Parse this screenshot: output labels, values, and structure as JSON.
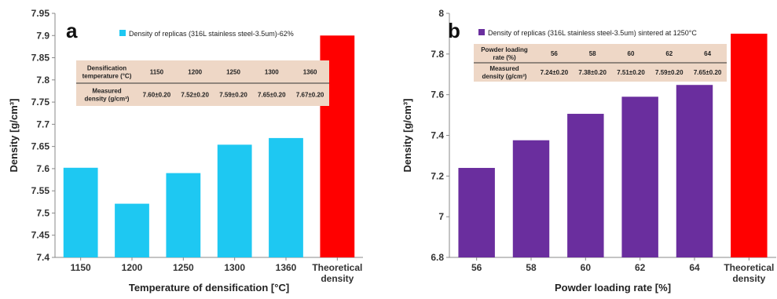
{
  "chart_data": [
    {
      "type": "bar",
      "panel_label": "a",
      "categories": [
        "1150",
        "1200",
        "1250",
        "1300",
        "1360",
        "Theoretical\ndensity"
      ],
      "values": [
        7.602,
        7.521,
        7.59,
        7.654,
        7.669,
        7.9
      ],
      "bar_colors": [
        "#1ec8f2",
        "#1ec8f2",
        "#1ec8f2",
        "#1ec8f2",
        "#1ec8f2",
        "#ff0000"
      ],
      "xlabel": "Temperature of densification [°C]",
      "ylabel": "Density [g/cm³]",
      "ylim": [
        7.4,
        7.95
      ],
      "yticks": [
        7.4,
        7.45,
        7.5,
        7.55,
        7.6,
        7.65,
        7.7,
        7.75,
        7.8,
        7.85,
        7.9,
        7.95
      ],
      "ytick_labels": [
        "7.4",
        "7.45",
        "7.5",
        "7.55",
        "7.6",
        "7.65",
        "7.7",
        "7.75",
        "7.8",
        "7.85",
        "7.9",
        "7.95"
      ],
      "legend": {
        "label": "Density of replicas (316L stainless steel-3.5um)-62%",
        "color": "#1ec8f2",
        "placement": "top-left"
      },
      "table": {
        "row1_header": [
          "Densification",
          "temperature (°C)"
        ],
        "row1_values": [
          "1150",
          "1200",
          "1250",
          "1300",
          "1360"
        ],
        "row2_header": [
          "Measured",
          "density (g/cm³)"
        ],
        "row2_values": [
          "7.60±0.20",
          "7.52±0.20",
          "7.59±0.20",
          "7.65±0.20",
          "7.67±0.20"
        ]
      }
    },
    {
      "type": "bar",
      "panel_label": "b",
      "categories": [
        "56",
        "58",
        "60",
        "62",
        "64",
        "Theoretical\ndensity"
      ],
      "values": [
        7.24,
        7.376,
        7.506,
        7.59,
        7.648,
        7.9
      ],
      "bar_colors": [
        "#6a2e9e",
        "#6a2e9e",
        "#6a2e9e",
        "#6a2e9e",
        "#6a2e9e",
        "#ff0000"
      ],
      "xlabel": "Powder loading rate [%]",
      "ylabel": "Density [g/cm³]",
      "ylim": [
        6.8,
        8.0
      ],
      "yticks": [
        6.8,
        7.0,
        7.2,
        7.4,
        7.6,
        7.8,
        8.0
      ],
      "ytick_labels": [
        "6.8",
        "7",
        "7.2",
        "7.4",
        "7.6",
        "7.8",
        "8"
      ],
      "legend": {
        "label": "Density of replicas (316L stainless steel-3.5um) sintered at 1250°C",
        "color": "#6a2e9e",
        "placement": "top-left"
      },
      "table": {
        "row1_header": [
          "Powder loading",
          "rate (%)"
        ],
        "row1_values": [
          "56",
          "58",
          "60",
          "62",
          "64"
        ],
        "row2_header": [
          "Measured",
          "density (g/cm³)"
        ],
        "row2_values": [
          "7.24±0.20",
          "7.38±0.20",
          "7.51±0.20",
          "7.59±0.20",
          "7.65±0.20"
        ]
      }
    }
  ]
}
